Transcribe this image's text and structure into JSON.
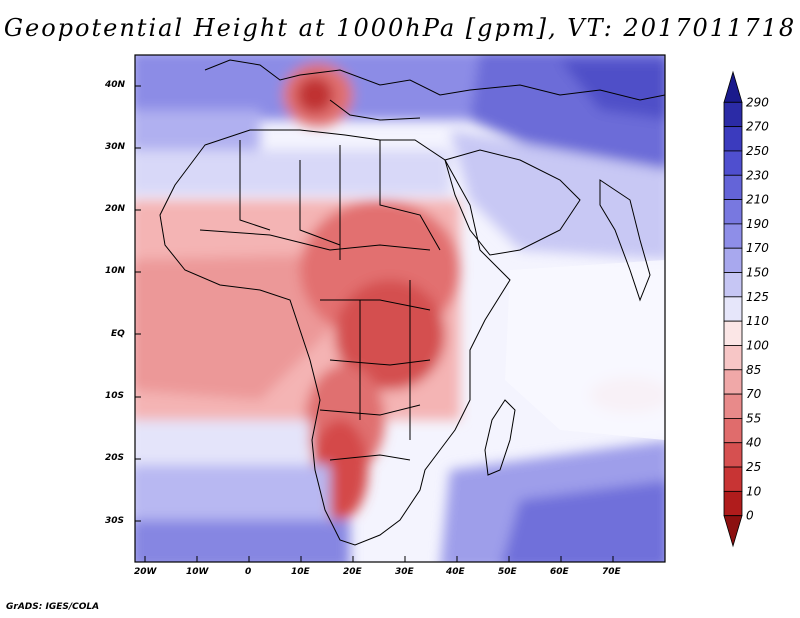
{
  "title": "Geopotential Height at 1000hPa [gpm], VT: 2017011718",
  "credit": "GrADS: IGES/COLA",
  "map": {
    "lat_labels": [
      "40N",
      "30N",
      "20N",
      "10N",
      "EQ",
      "10S",
      "20S",
      "30S"
    ],
    "lon_labels": [
      "20W",
      "10W",
      "0",
      "10E",
      "20E",
      "30E",
      "40E",
      "50E",
      "60E",
      "70E"
    ]
  },
  "colorbar": {
    "levels": [
      "290",
      "270",
      "250",
      "230",
      "210",
      "190",
      "170",
      "150",
      "125",
      "110",
      "100",
      "85",
      "70",
      "55",
      "40",
      "25",
      "10",
      "0"
    ],
    "colors": [
      "#1a1a8c",
      "#2b2ba6",
      "#3b3bbe",
      "#4f4fcf",
      "#6464d8",
      "#7878e0",
      "#8e8ee8",
      "#a8a8ee",
      "#c6c6f4",
      "#e6e6fa",
      "#fbe6e6",
      "#f7c6c6",
      "#f0a8a8",
      "#e88a8a",
      "#e06c6c",
      "#d65050",
      "#c83434",
      "#b01c1c",
      "#8c1010"
    ]
  }
}
